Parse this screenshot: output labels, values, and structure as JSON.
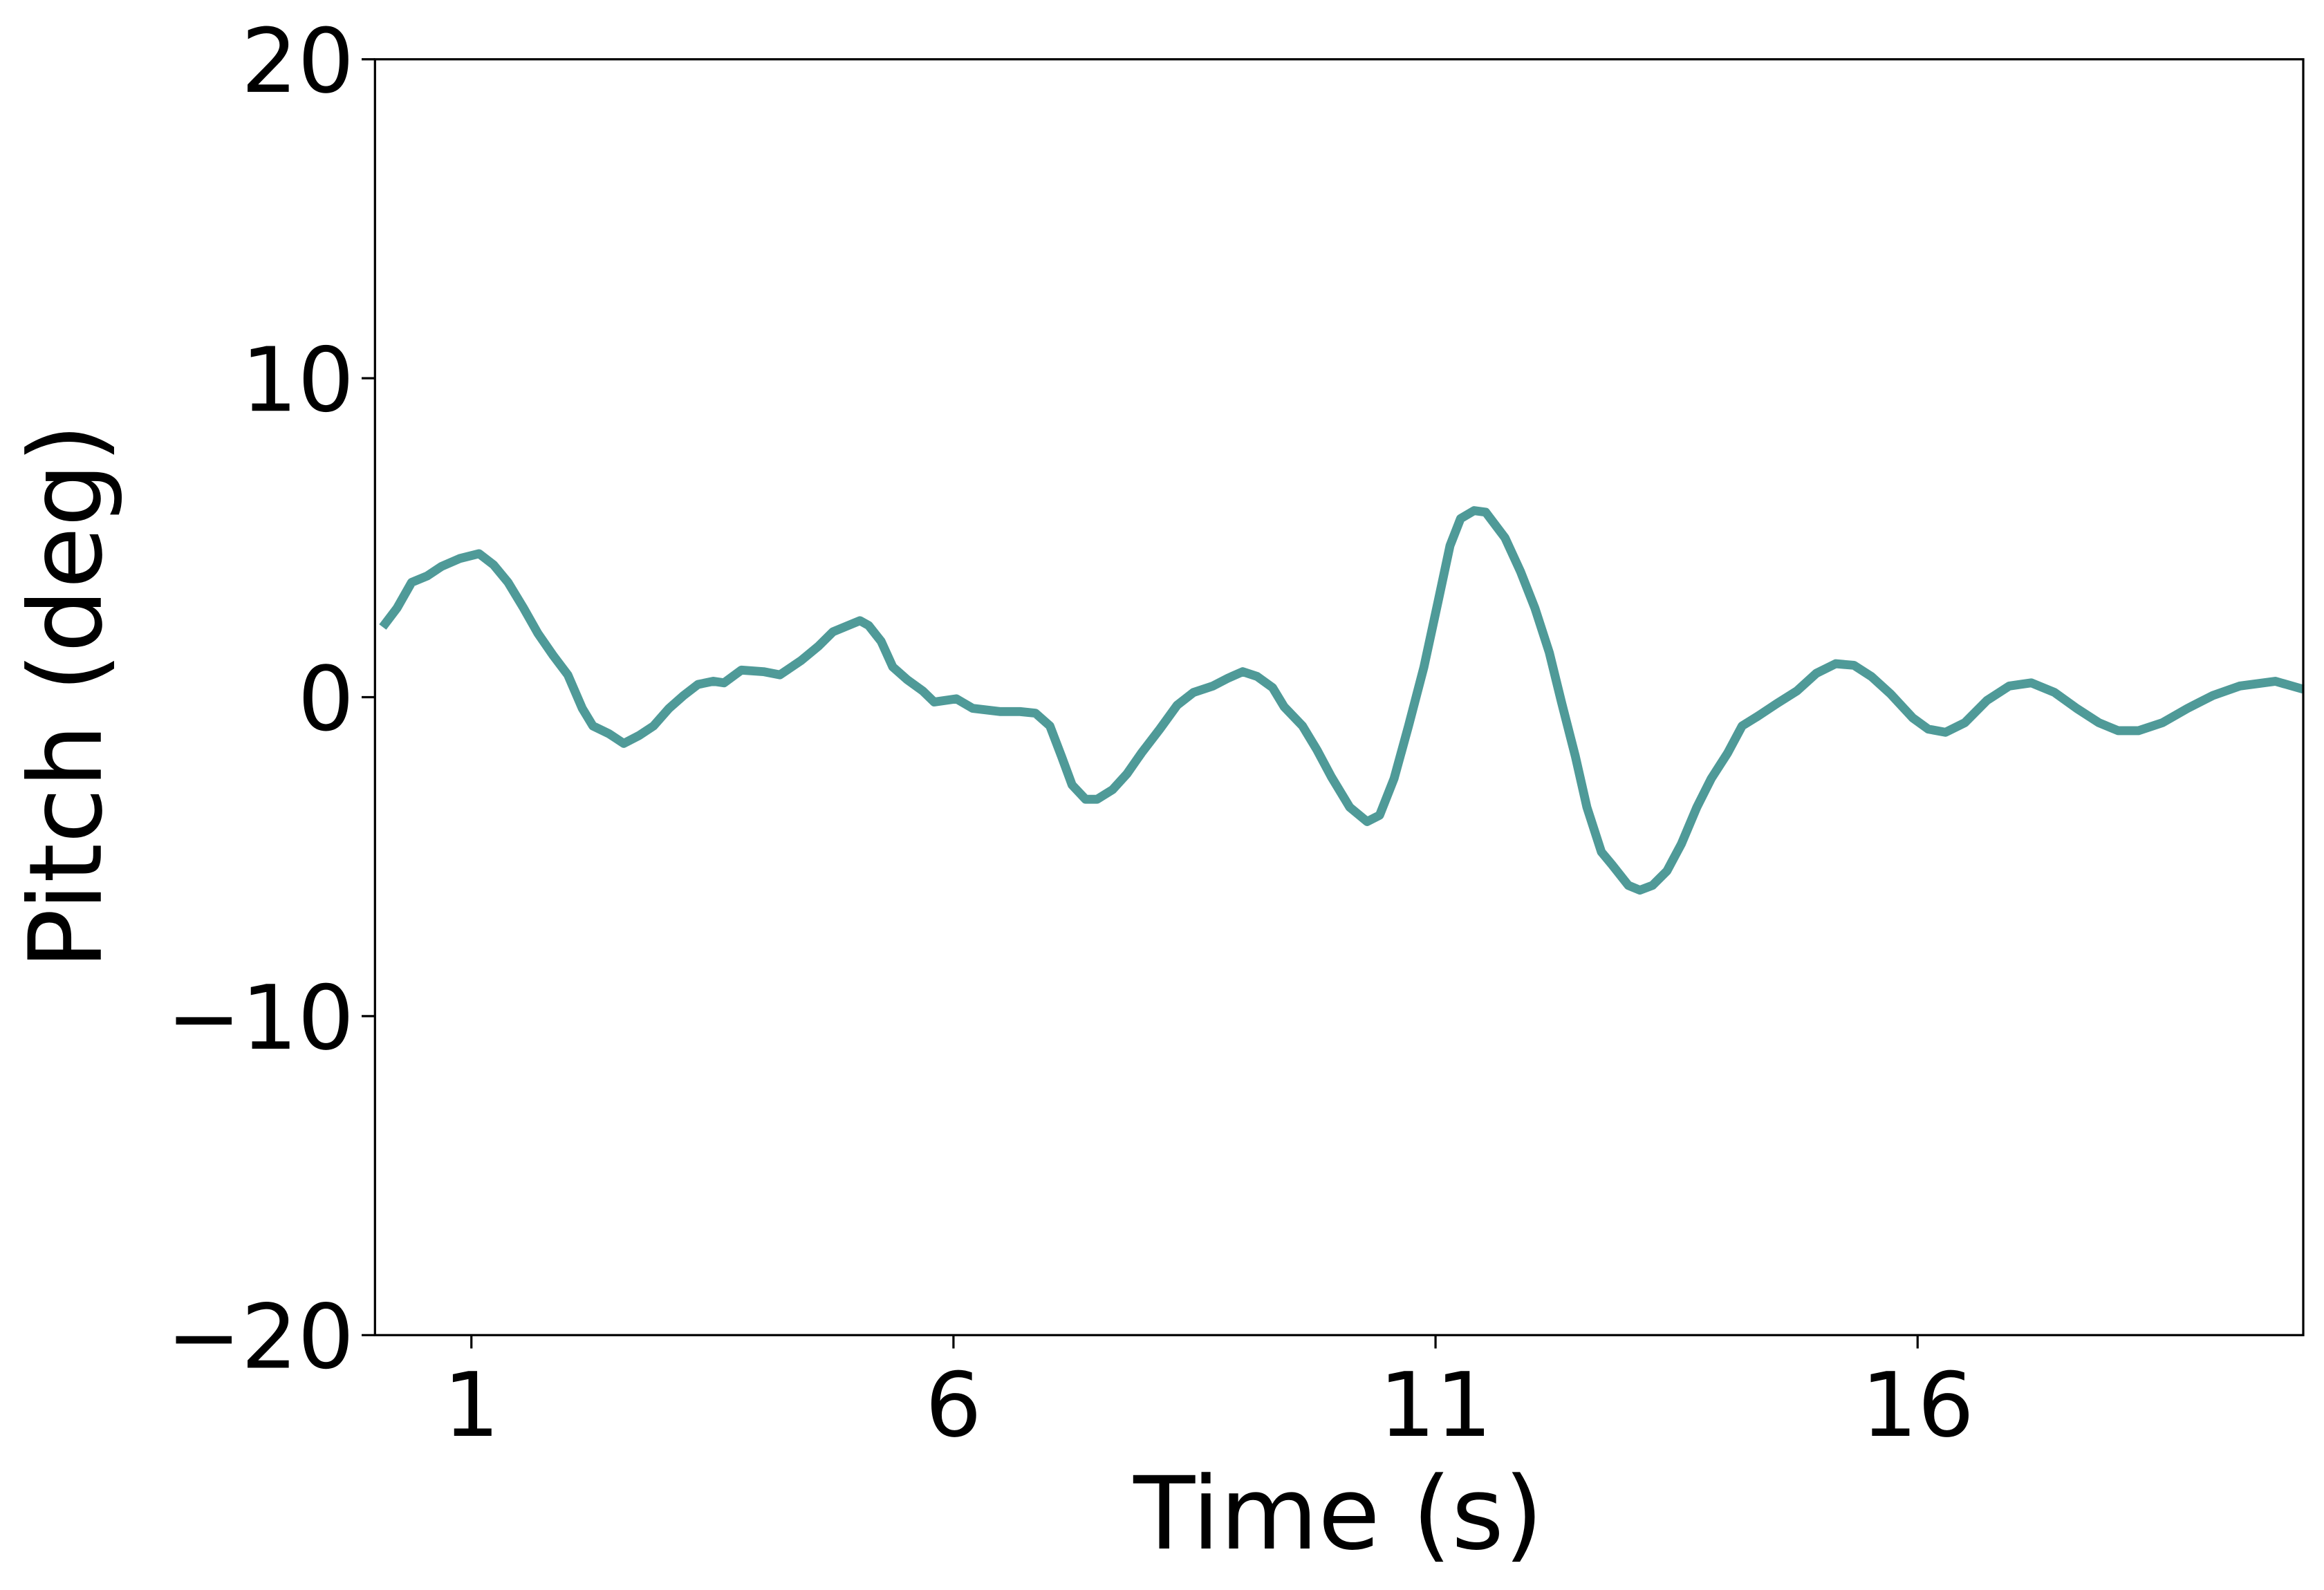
{
  "chart_data": {
    "type": "line",
    "x_label": "Time (s)",
    "y_label": "Pitch (deg)",
    "xlim": [
      0,
      20
    ],
    "ylim": [
      -20,
      20
    ],
    "xticks": [
      1,
      6,
      11,
      16
    ],
    "yticks": [
      {
        "value": -20,
        "label": "−20"
      },
      {
        "value": -10,
        "label": "−10"
      },
      0,
      10,
      20
    ],
    "x": [
      0.08,
      0.23,
      0.38,
      0.54,
      0.69,
      0.88,
      1.08,
      1.23,
      1.38,
      1.54,
      1.69,
      1.85,
      2.0,
      2.15,
      2.26,
      2.43,
      2.58,
      2.74,
      2.89,
      3.05,
      3.2,
      3.35,
      3.51,
      3.62,
      3.8,
      4.03,
      4.2,
      4.42,
      4.6,
      4.75,
      4.91,
      5.03,
      5.12,
      5.25,
      5.37,
      5.52,
      5.68,
      5.8,
      6.03,
      6.2,
      6.48,
      6.69,
      6.85,
      7.0,
      7.12,
      7.23,
      7.37,
      7.49,
      7.65,
      7.8,
      7.95,
      8.14,
      8.32,
      8.49,
      8.69,
      8.85,
      9.0,
      9.15,
      9.31,
      9.43,
      9.62,
      9.77,
      9.92,
      10.11,
      10.29,
      10.42,
      10.57,
      10.72,
      10.88,
      11.03,
      11.15,
      11.26,
      11.4,
      11.52,
      11.72,
      11.88,
      12.03,
      12.18,
      12.31,
      12.45,
      12.57,
      12.72,
      12.83,
      13.0,
      13.12,
      13.25,
      13.4,
      13.55,
      13.71,
      13.86,
      14.03,
      14.18,
      14.34,
      14.54,
      14.75,
      14.95,
      15.15,
      15.34,
      15.52,
      15.72,
      15.95,
      16.11,
      16.29,
      16.49,
      16.72,
      16.95,
      17.18,
      17.42,
      17.65,
      17.88,
      18.08,
      18.29,
      18.54,
      18.8,
      19.06,
      19.34,
      19.71,
      20.0
    ],
    "series": [
      {
        "color": "#4f9a98",
        "values": [
          2.2,
          2.8,
          3.6,
          3.8,
          4.1,
          4.35,
          4.5,
          4.15,
          3.6,
          2.8,
          2.0,
          1.3,
          0.7,
          -0.35,
          -0.9,
          -1.15,
          -1.45,
          -1.2,
          -0.9,
          -0.35,
          0.05,
          0.4,
          0.5,
          0.45,
          0.85,
          0.8,
          0.7,
          1.15,
          1.6,
          2.05,
          2.25,
          2.4,
          2.25,
          1.75,
          0.95,
          0.55,
          0.2,
          -0.15,
          -0.05,
          -0.35,
          -0.45,
          -0.45,
          -0.5,
          -0.9,
          -1.85,
          -2.75,
          -3.2,
          -3.2,
          -2.9,
          -2.4,
          -1.75,
          -1.0,
          -0.25,
          0.15,
          0.35,
          0.6,
          0.8,
          0.65,
          0.3,
          -0.3,
          -0.9,
          -1.65,
          -2.5,
          -3.45,
          -3.9,
          -3.7,
          -2.55,
          -0.9,
          0.95,
          3.05,
          4.75,
          5.6,
          5.85,
          5.8,
          5.0,
          3.95,
          2.8,
          1.4,
          -0.2,
          -1.85,
          -3.45,
          -4.85,
          -5.25,
          -5.9,
          -6.05,
          -5.9,
          -5.45,
          -4.6,
          -3.45,
          -2.55,
          -1.75,
          -0.9,
          -0.6,
          -0.2,
          0.2,
          0.75,
          1.05,
          1.0,
          0.65,
          0.1,
          -0.65,
          -1.0,
          -1.1,
          -0.8,
          -0.1,
          0.35,
          0.45,
          0.15,
          -0.35,
          -0.8,
          -1.05,
          -1.05,
          -0.8,
          -0.35,
          0.05,
          0.35,
          0.5,
          0.25
        ]
      }
    ]
  }
}
